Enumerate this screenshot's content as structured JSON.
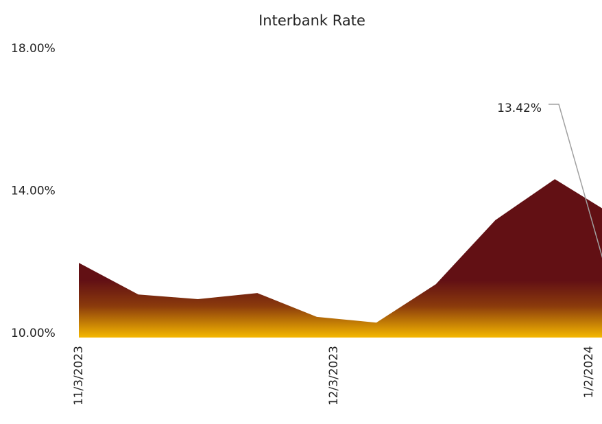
{
  "chart_data": {
    "type": "area",
    "title": "Interbank Rate",
    "x": [
      "11/3/2023",
      "11/10/2023",
      "11/17/2023",
      "11/24/2023",
      "12/1/2023",
      "12/8/2023",
      "12/15/2023",
      "12/22/2023",
      "12/29/2023",
      "1/5/2024"
    ],
    "series": [
      {
        "name": "Interbank Rate",
        "colors": [
          "#621014",
          "#8a3a0c",
          "#f5b800"
        ],
        "values": [
          12.1,
          11.21,
          11.08,
          11.25,
          10.58,
          10.42,
          11.5,
          13.3,
          14.45,
          13.42
        ],
        "value_labels": [
          null,
          null,
          null,
          null,
          null,
          null,
          null,
          null,
          null,
          "13.42%"
        ]
      }
    ],
    "xlim": [
      "11/3/2023",
      "1/5/2024"
    ],
    "xticks": [
      "11/3/2023",
      "12/3/2023",
      "1/2/2024"
    ],
    "ylim": [
      10,
      18
    ],
    "yticks": [
      {
        "value": 10,
        "label": "10.00%"
      },
      {
        "value": 14,
        "label": "14.00%"
      },
      {
        "value": 18,
        "label": "18.00%"
      }
    ],
    "grid": false
  }
}
